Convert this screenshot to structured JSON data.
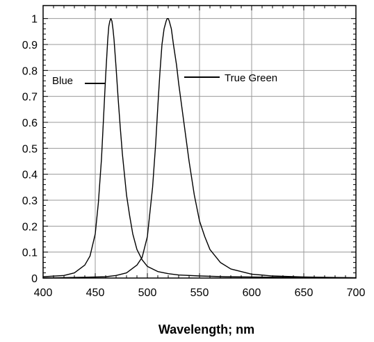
{
  "chart_data": {
    "type": "line",
    "xlabel": "Wavelength; nm",
    "ylabel": "",
    "xlim": [
      400,
      700
    ],
    "ylim": [
      0,
      1.05
    ],
    "xticks": [
      400,
      450,
      500,
      550,
      600,
      650,
      700
    ],
    "yticks": [
      0,
      0.1,
      0.2,
      0.3,
      0.4,
      0.5,
      0.6,
      0.7,
      0.8,
      0.9,
      1
    ],
    "xtick_labels": [
      "400",
      "450",
      "500",
      "550",
      "600",
      "650",
      "700"
    ],
    "ytick_labels": [
      "0",
      "0.1",
      "0.2",
      "0.3",
      "0.4",
      "0.5",
      "0.6",
      "0.7",
      "0.8",
      "0.9",
      "1"
    ],
    "grid": true,
    "series": [
      {
        "name": "Blue",
        "color": "#000000",
        "x": [
          400,
          420,
          430,
          440,
          445,
          450,
          453,
          456,
          458,
          460,
          462,
          463,
          464,
          465,
          466,
          467,
          468,
          470,
          472,
          474,
          476,
          478,
          480,
          483,
          486,
          490,
          495,
          500,
          510,
          520,
          530,
          550,
          575,
          600,
          650,
          700
        ],
        "y": [
          0.005,
          0.01,
          0.02,
          0.05,
          0.085,
          0.17,
          0.29,
          0.46,
          0.62,
          0.78,
          0.92,
          0.97,
          0.99,
          1.0,
          0.99,
          0.96,
          0.92,
          0.81,
          0.69,
          0.58,
          0.48,
          0.4,
          0.32,
          0.24,
          0.17,
          0.11,
          0.07,
          0.045,
          0.025,
          0.017,
          0.012,
          0.008,
          0.005,
          0.004,
          0.002,
          0.001
        ]
      },
      {
        "name": "True Green",
        "color": "#000000",
        "x": [
          400,
          440,
          460,
          470,
          480,
          490,
          495,
          500,
          505,
          508,
          510,
          512,
          514,
          516,
          518,
          519,
          520,
          521,
          523,
          525,
          528,
          530,
          535,
          540,
          545,
          550,
          555,
          560,
          570,
          580,
          600,
          620,
          650,
          700
        ],
        "y": [
          0.0,
          0.003,
          0.005,
          0.01,
          0.02,
          0.05,
          0.08,
          0.16,
          0.35,
          0.52,
          0.66,
          0.79,
          0.9,
          0.96,
          0.99,
          1.0,
          1.0,
          0.99,
          0.96,
          0.9,
          0.82,
          0.75,
          0.6,
          0.45,
          0.32,
          0.22,
          0.16,
          0.11,
          0.06,
          0.035,
          0.015,
          0.008,
          0.004,
          0.001
        ]
      }
    ],
    "annotations": [
      {
        "text": "Blue",
        "series": 0
      },
      {
        "text": "True Green",
        "series": 1
      }
    ]
  }
}
